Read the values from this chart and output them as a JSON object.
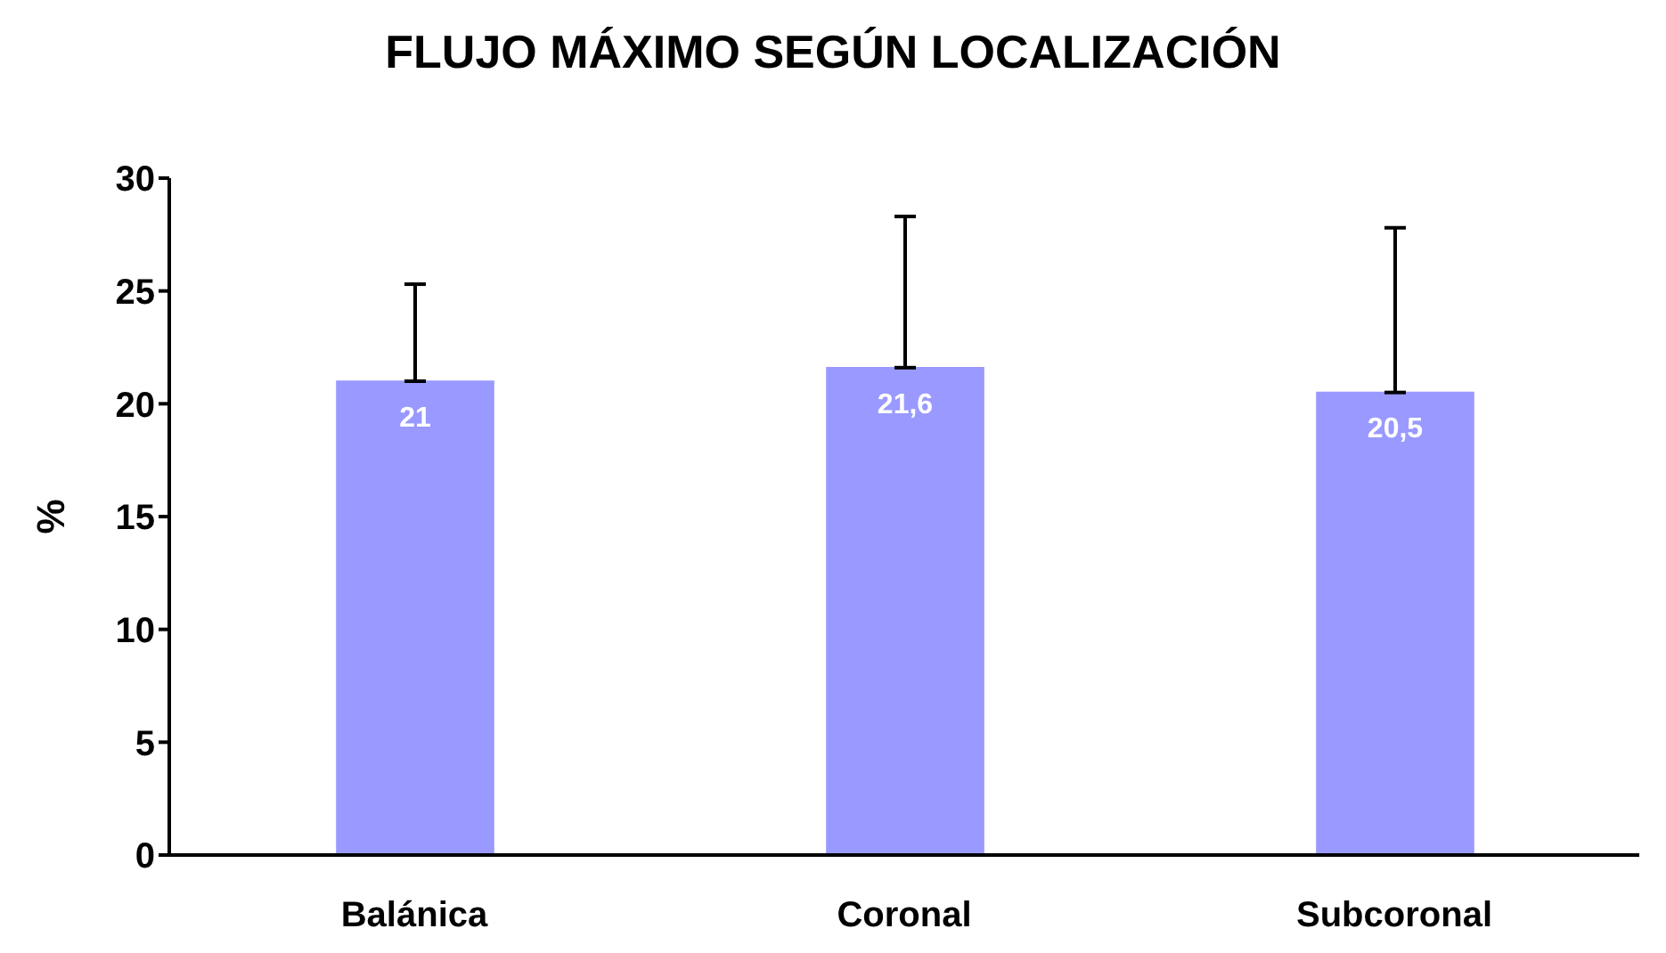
{
  "chart_data": {
    "type": "bar",
    "title": "FLUJO MÁXIMO SEGÚN LOCALIZACIÓN",
    "ylabel": "%",
    "categories": [
      "Balánica",
      "Coronal",
      "Subcoronal"
    ],
    "values": [
      21,
      21.6,
      20.5
    ],
    "value_labels": [
      "21",
      "21,6",
      "20,5"
    ],
    "errors": [
      [
        21,
        25.3
      ],
      [
        21.6,
        28.3
      ],
      [
        20.5,
        27.8
      ]
    ],
    "color": "#9999ff",
    "ylim": [
      0,
      30
    ],
    "yticks": [
      0,
      5,
      10,
      15,
      20,
      25,
      30
    ],
    "grid": false,
    "legend": false
  }
}
